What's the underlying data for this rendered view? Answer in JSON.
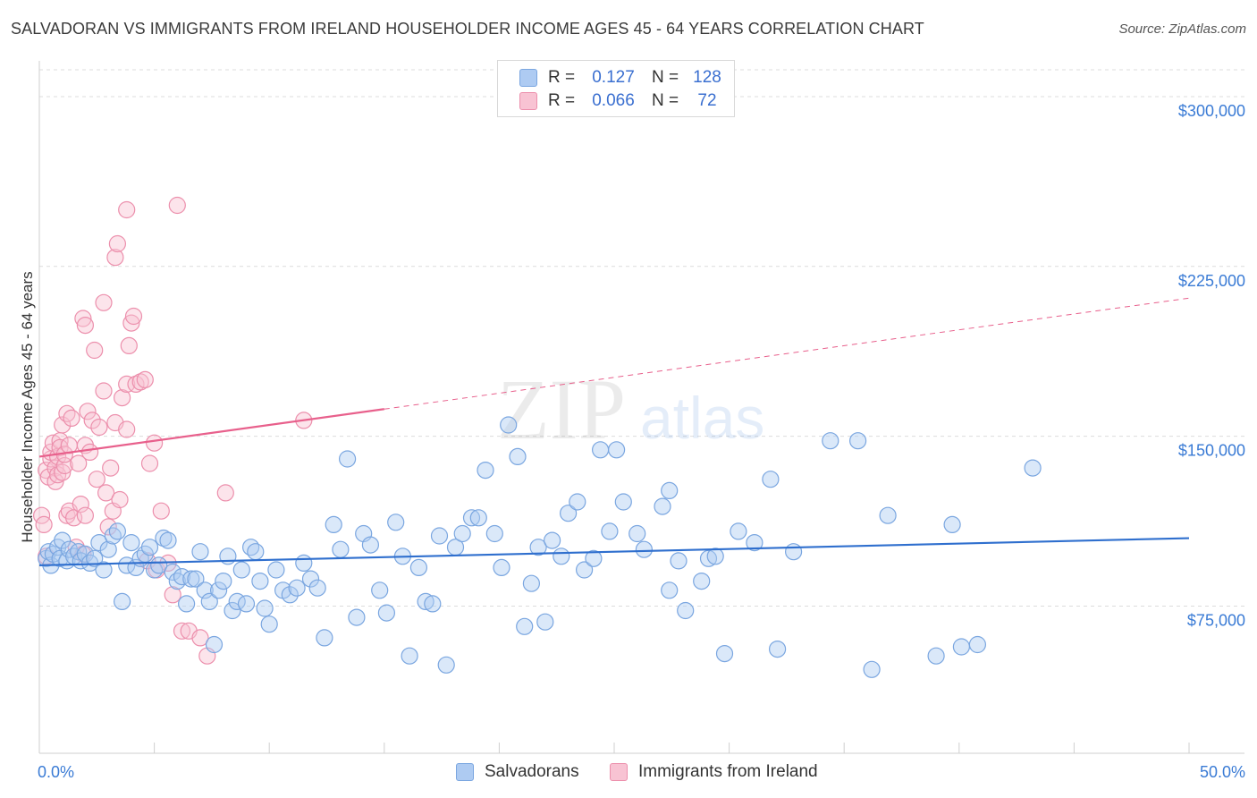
{
  "title": "SALVADORAN VS IMMIGRANTS FROM IRELAND HOUSEHOLDER INCOME AGES 45 - 64 YEARS CORRELATION CHART",
  "source": "Source: ZipAtlas.com",
  "watermark": {
    "zip": "ZIP",
    "atlas": "atlas"
  },
  "legend_stats": [
    {
      "r_label": "R =",
      "r_value": "0.127",
      "n_label": "N =",
      "n_value": "128",
      "color": "#aecbf2",
      "border": "#7aa6e0"
    },
    {
      "r_label": "R =",
      "r_value": "0.066",
      "n_label": "N =",
      "n_value": "72",
      "color": "#f8c3d3",
      "border": "#ec8fac"
    }
  ],
  "series_legend": [
    {
      "name": "Salvadorans",
      "color": "#aecbf2",
      "border": "#7aa6e0"
    },
    {
      "name": "Immigrants from Ireland",
      "color": "#f8c3d3",
      "border": "#ec8fac"
    }
  ],
  "chart_data": {
    "type": "scatter",
    "title": "SALVADORAN VS IMMIGRANTS FROM IRELAND HOUSEHOLDER INCOME AGES 45 - 64 YEARS CORRELATION CHART",
    "xlabel": "",
    "ylabel": "Householder Income Ages 45 - 64 years",
    "xlim": [
      0,
      50
    ],
    "ylim": [
      10000,
      315000
    ],
    "x_tick_labels": [
      "0.0%",
      "50.0%"
    ],
    "y_ticks": [
      75000,
      150000,
      225000,
      300000
    ],
    "y_tick_labels": [
      "$75,000",
      "$150,000",
      "$225,000",
      "$300,000"
    ],
    "grid": true,
    "series": [
      {
        "name": "Salvadorans",
        "color": "#7aa6e0",
        "fill": "#aecbf2",
        "trend": {
          "x": [
            0,
            50
          ],
          "y": [
            93000,
            105000
          ],
          "color": "#2f6fce",
          "dashed_from": null
        },
        "points": [
          [
            0.3,
            96000
          ],
          [
            0.4,
            99000
          ],
          [
            0.5,
            93000
          ],
          [
            0.6,
            98000
          ],
          [
            0.8,
            101000
          ],
          [
            0.9,
            96000
          ],
          [
            1.0,
            104000
          ],
          [
            1.2,
            95000
          ],
          [
            1.3,
            100000
          ],
          [
            1.5,
            97000
          ],
          [
            1.7,
            99000
          ],
          [
            1.8,
            95000
          ],
          [
            2.0,
            98000
          ],
          [
            2.2,
            94000
          ],
          [
            2.4,
            96000
          ],
          [
            2.6,
            103000
          ],
          [
            2.8,
            91000
          ],
          [
            3.0,
            100000
          ],
          [
            3.2,
            106000
          ],
          [
            3.4,
            108000
          ],
          [
            3.6,
            77000
          ],
          [
            3.8,
            93000
          ],
          [
            4.0,
            103000
          ],
          [
            4.2,
            92000
          ],
          [
            4.4,
            96000
          ],
          [
            4.6,
            98000
          ],
          [
            4.8,
            101000
          ],
          [
            5.0,
            91000
          ],
          [
            5.2,
            93000
          ],
          [
            5.4,
            105000
          ],
          [
            5.6,
            104000
          ],
          [
            5.8,
            90000
          ],
          [
            6.0,
            86000
          ],
          [
            6.2,
            88000
          ],
          [
            6.4,
            76000
          ],
          [
            6.6,
            87000
          ],
          [
            6.8,
            87000
          ],
          [
            7.0,
            99000
          ],
          [
            7.2,
            82000
          ],
          [
            7.4,
            77000
          ],
          [
            7.6,
            58000
          ],
          [
            7.8,
            82000
          ],
          [
            8.0,
            86000
          ],
          [
            8.2,
            97000
          ],
          [
            8.4,
            73000
          ],
          [
            8.6,
            77000
          ],
          [
            8.8,
            91000
          ],
          [
            9.0,
            76000
          ],
          [
            9.2,
            101000
          ],
          [
            9.4,
            99000
          ],
          [
            9.6,
            86000
          ],
          [
            9.8,
            74000
          ],
          [
            10.0,
            67000
          ],
          [
            10.3,
            91000
          ],
          [
            10.6,
            82000
          ],
          [
            10.9,
            80000
          ],
          [
            11.2,
            83000
          ],
          [
            11.5,
            94000
          ],
          [
            11.8,
            87000
          ],
          [
            12.1,
            83000
          ],
          [
            12.4,
            61000
          ],
          [
            12.8,
            111000
          ],
          [
            13.1,
            100000
          ],
          [
            13.4,
            140000
          ],
          [
            13.8,
            70000
          ],
          [
            14.1,
            107000
          ],
          [
            14.4,
            102000
          ],
          [
            14.8,
            82000
          ],
          [
            15.1,
            72000
          ],
          [
            15.5,
            112000
          ],
          [
            15.8,
            97000
          ],
          [
            16.1,
            53000
          ],
          [
            16.5,
            92000
          ],
          [
            16.8,
            77000
          ],
          [
            17.1,
            76000
          ],
          [
            17.4,
            106000
          ],
          [
            17.7,
            49000
          ],
          [
            18.1,
            101000
          ],
          [
            18.4,
            107000
          ],
          [
            18.8,
            114000
          ],
          [
            19.1,
            114000
          ],
          [
            19.4,
            135000
          ],
          [
            19.8,
            107000
          ],
          [
            20.1,
            92000
          ],
          [
            20.4,
            155000
          ],
          [
            20.8,
            141000
          ],
          [
            21.1,
            66000
          ],
          [
            21.4,
            85000
          ],
          [
            21.7,
            101000
          ],
          [
            22.0,
            68000
          ],
          [
            22.3,
            104000
          ],
          [
            22.7,
            97000
          ],
          [
            23.0,
            116000
          ],
          [
            23.4,
            121000
          ],
          [
            23.7,
            91000
          ],
          [
            24.1,
            96000
          ],
          [
            24.4,
            144000
          ],
          [
            24.8,
            108000
          ],
          [
            25.1,
            144000
          ],
          [
            25.4,
            121000
          ],
          [
            26.0,
            107000
          ],
          [
            26.3,
            100000
          ],
          [
            27.1,
            119000
          ],
          [
            27.4,
            126000
          ],
          [
            27.4,
            82000
          ],
          [
            27.8,
            95000
          ],
          [
            28.1,
            73000
          ],
          [
            28.8,
            86000
          ],
          [
            29.1,
            96000
          ],
          [
            29.4,
            97000
          ],
          [
            29.8,
            54000
          ],
          [
            30.4,
            108000
          ],
          [
            31.1,
            103000
          ],
          [
            31.8,
            131000
          ],
          [
            32.1,
            56000
          ],
          [
            32.8,
            99000
          ],
          [
            34.4,
            148000
          ],
          [
            35.6,
            148000
          ],
          [
            36.2,
            47000
          ],
          [
            36.9,
            115000
          ],
          [
            39.0,
            53000
          ],
          [
            39.7,
            111000
          ],
          [
            40.1,
            57000
          ],
          [
            40.8,
            58000
          ],
          [
            43.2,
            136000
          ]
        ]
      },
      {
        "name": "Immigrants from Ireland",
        "color": "#ec8fac",
        "fill": "#f8c3d3",
        "trend": {
          "x": [
            0,
            50
          ],
          "y": [
            141000,
            211000
          ],
          "color": "#e8608c",
          "dashed_from": 15
        },
        "points": [
          [
            0.1,
            115000
          ],
          [
            0.2,
            111000
          ],
          [
            0.3,
            135000
          ],
          [
            0.3,
            97000
          ],
          [
            0.4,
            132000
          ],
          [
            0.5,
            140000
          ],
          [
            0.5,
            143000
          ],
          [
            0.6,
            147000
          ],
          [
            0.7,
            136000
          ],
          [
            0.7,
            130000
          ],
          [
            0.8,
            141000
          ],
          [
            0.8,
            133000
          ],
          [
            0.9,
            148000
          ],
          [
            0.9,
            145000
          ],
          [
            1.0,
            134000
          ],
          [
            1.0,
            155000
          ],
          [
            1.1,
            137000
          ],
          [
            1.1,
            142000
          ],
          [
            1.2,
            115000
          ],
          [
            1.2,
            160000
          ],
          [
            1.3,
            117000
          ],
          [
            1.3,
            146000
          ],
          [
            1.4,
            158000
          ],
          [
            1.5,
            114000
          ],
          [
            1.6,
            101000
          ],
          [
            1.7,
            138000
          ],
          [
            1.8,
            120000
          ],
          [
            1.9,
            98000
          ],
          [
            1.9,
            202000
          ],
          [
            2.0,
            199000
          ],
          [
            2.0,
            146000
          ],
          [
            2.0,
            115000
          ],
          [
            2.1,
            161000
          ],
          [
            2.2,
            143000
          ],
          [
            2.3,
            157000
          ],
          [
            2.4,
            188000
          ],
          [
            2.5,
            131000
          ],
          [
            2.6,
            154000
          ],
          [
            2.8,
            209000
          ],
          [
            2.8,
            170000
          ],
          [
            2.9,
            125000
          ],
          [
            3.0,
            110000
          ],
          [
            3.1,
            136000
          ],
          [
            3.2,
            117000
          ],
          [
            3.3,
            156000
          ],
          [
            3.3,
            229000
          ],
          [
            3.4,
            235000
          ],
          [
            3.5,
            122000
          ],
          [
            3.6,
            167000
          ],
          [
            3.8,
            250000
          ],
          [
            3.8,
            173000
          ],
          [
            3.8,
            153000
          ],
          [
            3.9,
            190000
          ],
          [
            4.0,
            200000
          ],
          [
            4.1,
            203000
          ],
          [
            4.2,
            173000
          ],
          [
            4.4,
            174000
          ],
          [
            4.6,
            175000
          ],
          [
            4.7,
            95000
          ],
          [
            4.8,
            138000
          ],
          [
            5.0,
            147000
          ],
          [
            5.1,
            91000
          ],
          [
            5.3,
            117000
          ],
          [
            5.6,
            94000
          ],
          [
            5.8,
            80000
          ],
          [
            6.0,
            252000
          ],
          [
            6.2,
            64000
          ],
          [
            6.5,
            64000
          ],
          [
            7.0,
            61000
          ],
          [
            7.3,
            53000
          ],
          [
            8.1,
            125000
          ],
          [
            11.5,
            157000
          ]
        ]
      }
    ]
  }
}
